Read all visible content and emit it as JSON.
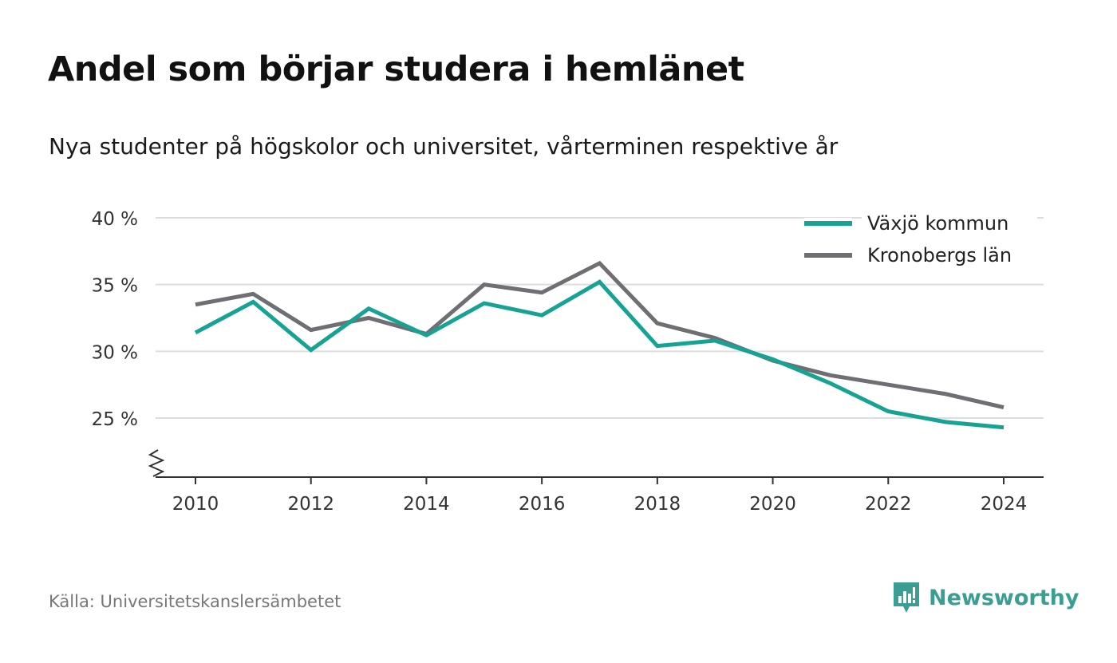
{
  "colors": {
    "vaxjo": "#17a394",
    "kronoberg": "#6e6e73",
    "grid": "#dddddd",
    "axis": "#333333",
    "brand": "#3a9e93"
  },
  "source_text": "Källa: Universitetskanslersämbetet",
  "brand": {
    "name": "Newsworthy",
    "icon": "newsworthy-logo-icon"
  },
  "chart_data": {
    "type": "line",
    "title": "Andel som börjar studera i hemlänet",
    "subtitle": "Nya studenter på högskolor och universitet, vårterminen respektive år",
    "x": [
      2010,
      2011,
      2012,
      2013,
      2014,
      2015,
      2016,
      2017,
      2018,
      2019,
      2020,
      2021,
      2022,
      2023,
      2024
    ],
    "x_ticks": [
      2010,
      2012,
      2014,
      2016,
      2018,
      2020,
      2022,
      2024
    ],
    "y_ticks": [
      25,
      30,
      35,
      40
    ],
    "y_tick_labels": [
      "25 %",
      "30 %",
      "35 %",
      "40 %"
    ],
    "ylim": [
      21.5,
      40
    ],
    "y_axis_break": true,
    "grid": true,
    "legend_position": "top-right",
    "series": [
      {
        "name": "Växjö kommun",
        "values": [
          31.4,
          33.7,
          30.1,
          33.2,
          31.2,
          33.6,
          32.7,
          35.2,
          30.4,
          30.8,
          29.4,
          27.6,
          25.5,
          24.7,
          24.3
        ]
      },
      {
        "name": "Kronobergs län",
        "values": [
          33.5,
          34.3,
          31.6,
          32.5,
          31.3,
          35.0,
          34.4,
          36.6,
          32.1,
          31.0,
          29.3,
          28.2,
          27.5,
          26.8,
          25.8
        ]
      }
    ]
  }
}
